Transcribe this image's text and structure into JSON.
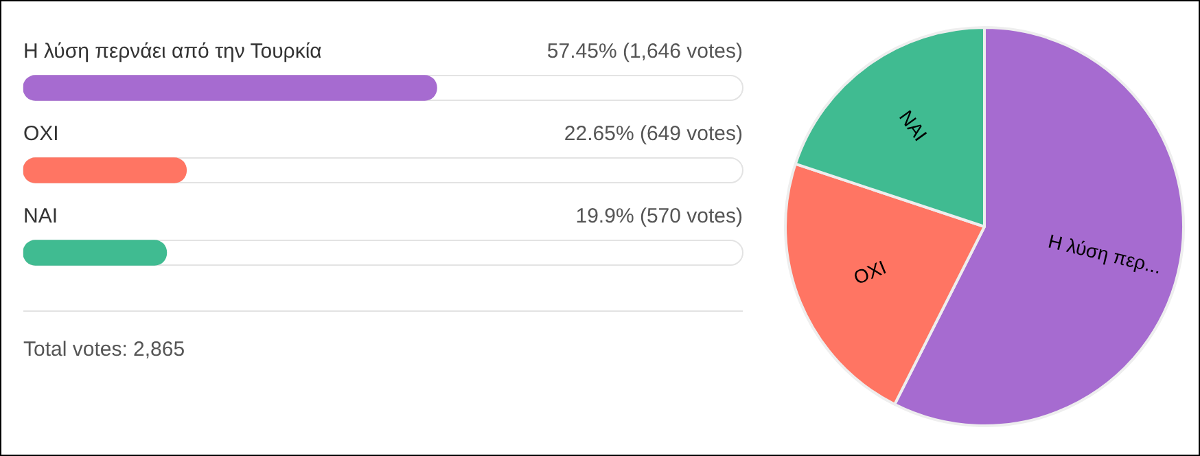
{
  "chart_data": [
    {
      "type": "bar",
      "orientation": "horizontal",
      "categories": [
        "Η λύση περνάει από την Τουρκία",
        "OXI",
        "NAI"
      ],
      "values": [
        57.45,
        22.65,
        19.9
      ],
      "colors": [
        "#a66bd0",
        "#ff7563",
        "#40bb91"
      ],
      "value_labels": [
        "57.45% (1,646 votes)",
        "22.65% (649 votes)",
        "19.9% (570 votes)"
      ],
      "xlim": [
        0,
        100
      ],
      "tick_labels": false,
      "legend": false,
      "annotations": [
        "Total votes: 2,865"
      ]
    },
    {
      "type": "pie",
      "categories": [
        "Η λύση περ...",
        "OXI",
        "NAI"
      ],
      "values": [
        57.45,
        22.65,
        19.9
      ],
      "colors": [
        "#a66bd0",
        "#ff7563",
        "#40bb91"
      ],
      "legend": false
    }
  ]
}
